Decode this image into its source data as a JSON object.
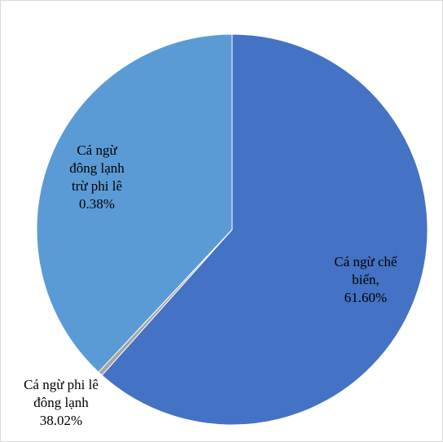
{
  "chart_data": {
    "type": "pie",
    "categories": [
      "Cá ngừ chế biến,",
      "Cá ngừ đông lạnh trừ phi lê",
      "Cá ngừ phi lê đông lạnh"
    ],
    "values": [
      61.6,
      0.38,
      38.02
    ],
    "value_labels": [
      "61.60%",
      "0.38%",
      "38.02%"
    ],
    "colors": [
      "#4472c4",
      "#a5a5a5",
      "#5b9bd5"
    ]
  }
}
